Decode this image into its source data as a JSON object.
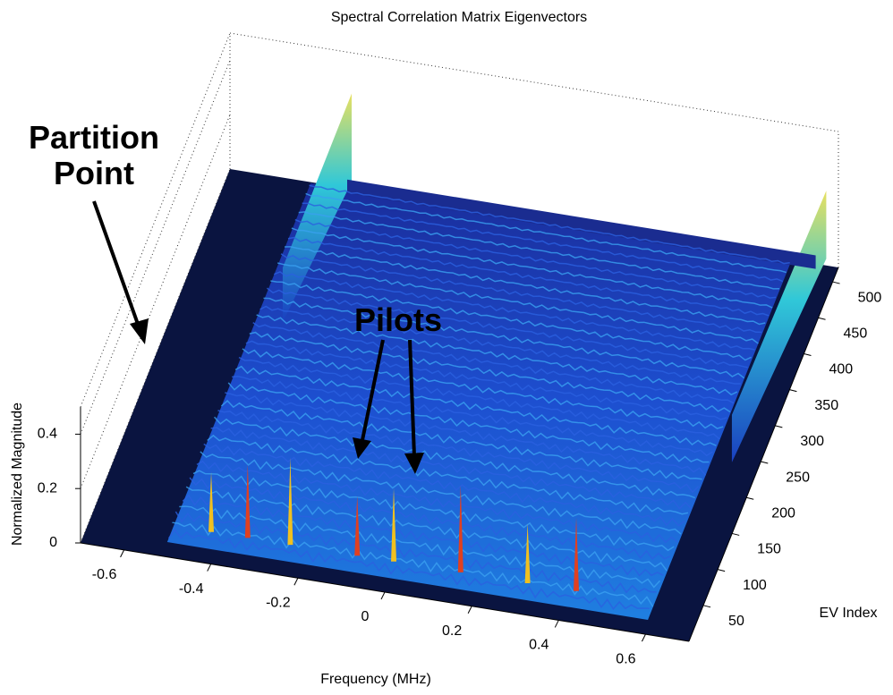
{
  "chart_data": {
    "type": "surface3d",
    "title": "Spectral Correlation Matrix Eigenvectors",
    "xlabel": "Frequency (MHz)",
    "ylabel": "EV Index",
    "zlabel": "Normalized Magnitude",
    "xlim": [
      -0.7,
      0.7
    ],
    "xticks": [
      -0.6,
      -0.4,
      -0.2,
      0,
      0.2,
      0.4,
      0.6
    ],
    "ylim": [
      0,
      520
    ],
    "yticks": [
      50,
      100,
      150,
      200,
      250,
      300,
      350,
      400,
      450,
      500
    ],
    "zlim": [
      0,
      0.5
    ],
    "zticks": [
      0,
      0.2,
      0.4
    ],
    "grid": true,
    "annotations": [
      {
        "text": "Partition\nPoint"
      },
      {
        "text": "Pilots"
      }
    ]
  }
}
